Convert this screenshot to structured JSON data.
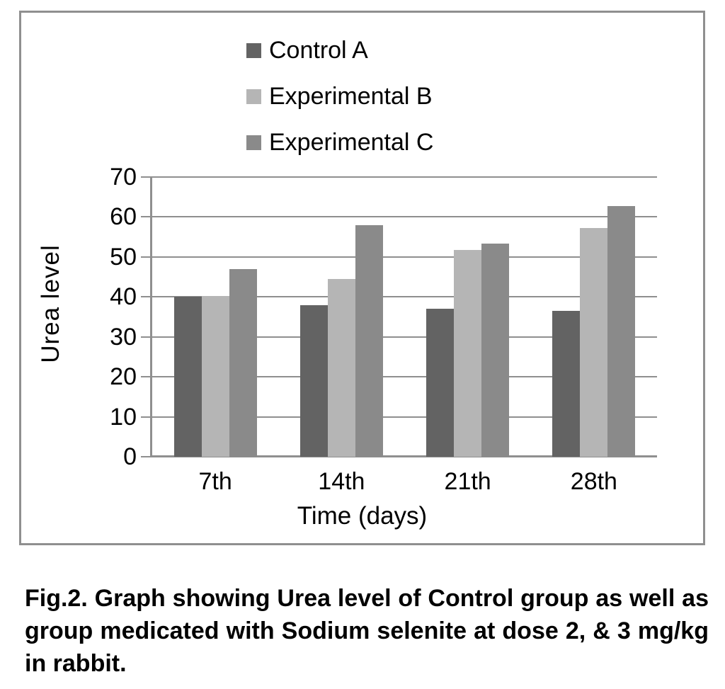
{
  "figure": {
    "caption": "Fig.2. Graph showing Urea level of Control group as well as group medicated with Sodium selenite at dose 2, & 3 mg/kg in rabbit."
  },
  "chart_data": {
    "type": "bar",
    "title": "",
    "categories": [
      "7th",
      "14th",
      "21th",
      "28th"
    ],
    "series": [
      {
        "name": "Control A",
        "color": "#636363",
        "values": [
          40,
          38,
          37,
          36.5
        ]
      },
      {
        "name": "Experimental B",
        "color": "#b5b5b5",
        "values": [
          40.2,
          44.5,
          51.8,
          57.3
        ]
      },
      {
        "name": "Experimental C",
        "color": "#8a8a8a",
        "values": [
          47,
          58,
          53.3,
          62.8
        ]
      }
    ],
    "xlabel": "Time (days)",
    "ylabel": "Urea  level",
    "ylim": [
      0,
      70
    ],
    "yticks": [
      0,
      10,
      20,
      30,
      40,
      50,
      60,
      70
    ],
    "grid": true,
    "legend_position": "top-center",
    "axis_color": "#8f8f8f"
  }
}
